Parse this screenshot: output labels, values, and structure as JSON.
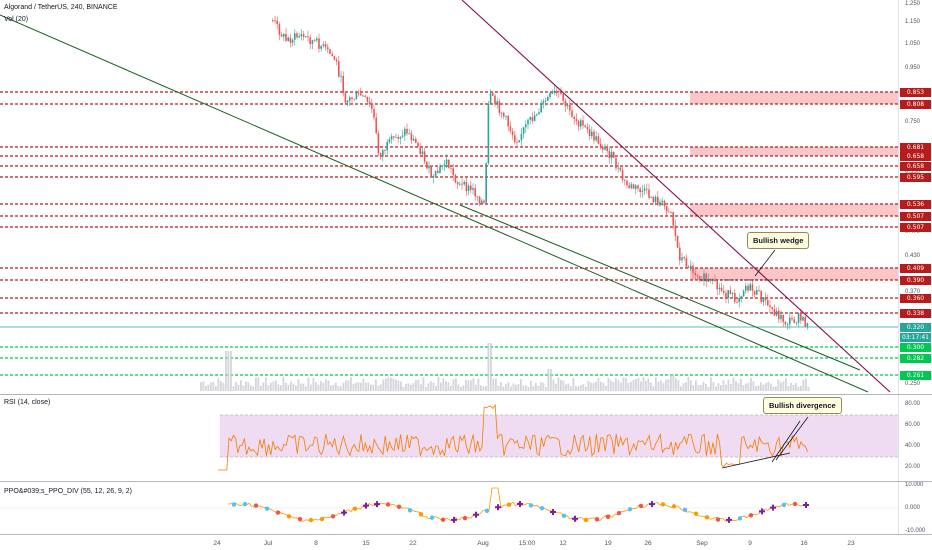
{
  "header": {
    "symbol_line": "Algorand / TetherUS, 240, BINANCE",
    "volume_label": "Vol (20)"
  },
  "price_axis": {
    "ticks": [
      "1.250",
      "1.150",
      "1.050",
      "0.950",
      "0.850",
      "0.750",
      "0.650",
      "0.550",
      "0.470",
      "0.430",
      "0.370",
      "0.250"
    ],
    "levels": [
      {
        "label": "0.853",
        "kind": "red"
      },
      {
        "label": "0.808",
        "kind": "red"
      },
      {
        "label": "0.681",
        "kind": "red"
      },
      {
        "label": "0.658",
        "kind": "red"
      },
      {
        "label": "0.658",
        "kind": "red"
      },
      {
        "label": "0.595",
        "kind": "red"
      },
      {
        "label": "0.536",
        "kind": "red"
      },
      {
        "label": "0.507",
        "kind": "red"
      },
      {
        "label": "0.507",
        "kind": "red"
      },
      {
        "label": "0.409",
        "kind": "red"
      },
      {
        "label": "0.390",
        "kind": "red"
      },
      {
        "label": "0.360",
        "kind": "red"
      },
      {
        "label": "0.338",
        "kind": "red"
      },
      {
        "label": "0.320",
        "kind": "teal"
      },
      {
        "label": "03:17:41",
        "kind": "teal"
      },
      {
        "label": "0.300",
        "kind": "green"
      },
      {
        "label": "0.282",
        "kind": "green"
      },
      {
        "label": "0.261",
        "kind": "green"
      }
    ]
  },
  "annotations": {
    "wedge": "Bullish wedge",
    "divergence": "Bullish divergence"
  },
  "rsi": {
    "label": "RSI (14, close)",
    "ticks": [
      "80.00",
      "60.00",
      "40.00",
      "20.00"
    ]
  },
  "ppo": {
    "label": "PPO&#039;s_PPO_DIV (55, 12, 26, 9, 2)",
    "ticks": [
      "10.000",
      "0.000",
      "-10.000"
    ]
  },
  "time_axis": {
    "labels": [
      "24",
      "Jul",
      "8",
      "15",
      "22",
      "Aug",
      "15:00",
      "12",
      "19",
      "26",
      "Sep",
      "9",
      "16",
      "23"
    ]
  },
  "colors": {
    "up": "#26a69a",
    "down": "#ef5350",
    "resistance": "#b71c1c",
    "support": "#00c853",
    "trend": "#1b5e20",
    "wedge_upper": "#880e4f",
    "rsi_line": "#f57c00",
    "rsi_band": "#e1bee7"
  }
}
